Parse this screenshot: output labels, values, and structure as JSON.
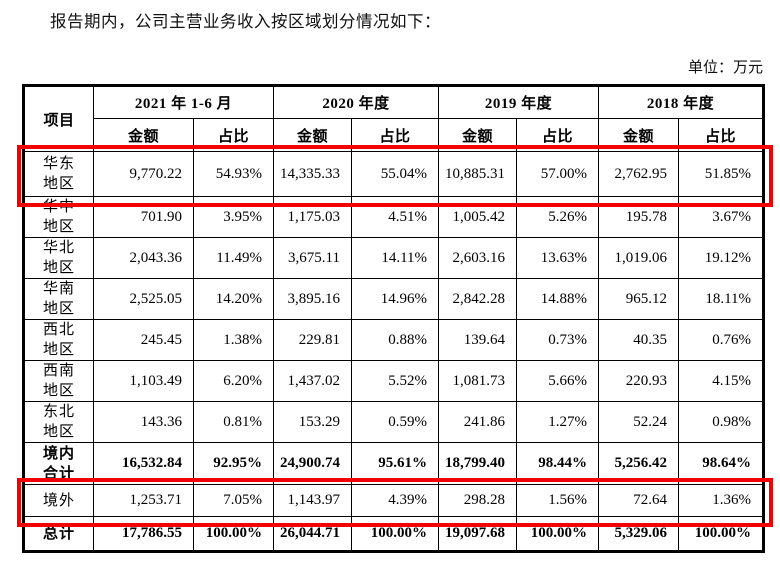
{
  "intro_text": "报告期内，公司主营业务收入按区域划分情况如下：",
  "unit_label": "单位：万元",
  "highlight_color": "#f20000",
  "table": {
    "item_header": "项目",
    "period_headers": [
      "2021 年 1-6 月",
      "2020 年度",
      "2019 年度",
      "2018 年度"
    ],
    "amount_label": "金额",
    "ratio_label": "占比",
    "rows": [
      {
        "label": "华东\n地区",
        "bold": false,
        "highlighted": true,
        "values": [
          "9,770.22",
          "54.93%",
          "14,335.33",
          "55.04%",
          "10,885.31",
          "57.00%",
          "2,762.95",
          "51.85%"
        ]
      },
      {
        "label": "华中\n地区",
        "bold": false,
        "highlighted": false,
        "values": [
          "701.90",
          "3.95%",
          "1,175.03",
          "4.51%",
          "1,005.42",
          "5.26%",
          "195.78",
          "3.67%"
        ]
      },
      {
        "label": "华北\n地区",
        "bold": false,
        "highlighted": false,
        "values": [
          "2,043.36",
          "11.49%",
          "3,675.11",
          "14.11%",
          "2,603.16",
          "13.63%",
          "1,019.06",
          "19.12%"
        ]
      },
      {
        "label": "华南\n地区",
        "bold": false,
        "highlighted": false,
        "values": [
          "2,525.05",
          "14.20%",
          "3,895.16",
          "14.96%",
          "2,842.28",
          "14.88%",
          "965.12",
          "18.11%"
        ]
      },
      {
        "label": "西北\n地区",
        "bold": false,
        "highlighted": false,
        "values": [
          "245.45",
          "1.38%",
          "229.81",
          "0.88%",
          "139.64",
          "0.73%",
          "40.35",
          "0.76%"
        ]
      },
      {
        "label": "西南\n地区",
        "bold": false,
        "highlighted": false,
        "values": [
          "1,103.49",
          "6.20%",
          "1,437.02",
          "5.52%",
          "1,081.73",
          "5.66%",
          "220.93",
          "4.15%"
        ]
      },
      {
        "label": "东北\n地区",
        "bold": false,
        "highlighted": false,
        "values": [
          "143.36",
          "0.81%",
          "153.29",
          "0.59%",
          "241.86",
          "1.27%",
          "52.24",
          "0.98%"
        ]
      },
      {
        "label": "境内\n合计",
        "bold": true,
        "highlighted": false,
        "values": [
          "16,532.84",
          "92.95%",
          "24,900.74",
          "95.61%",
          "18,799.40",
          "98.44%",
          "5,256.42",
          "98.64%"
        ]
      },
      {
        "label": "境外",
        "bold": false,
        "highlighted": true,
        "values": [
          "1,253.71",
          "7.05%",
          "1,143.97",
          "4.39%",
          "298.28",
          "1.56%",
          "72.64",
          "1.36%"
        ]
      },
      {
        "label": "总计",
        "bold": true,
        "highlighted": false,
        "values": [
          "17,786.55",
          "100.00%",
          "26,044.71",
          "100.00%",
          "19,097.68",
          "100.00%",
          "5,329.06",
          "100.00%"
        ]
      }
    ]
  }
}
